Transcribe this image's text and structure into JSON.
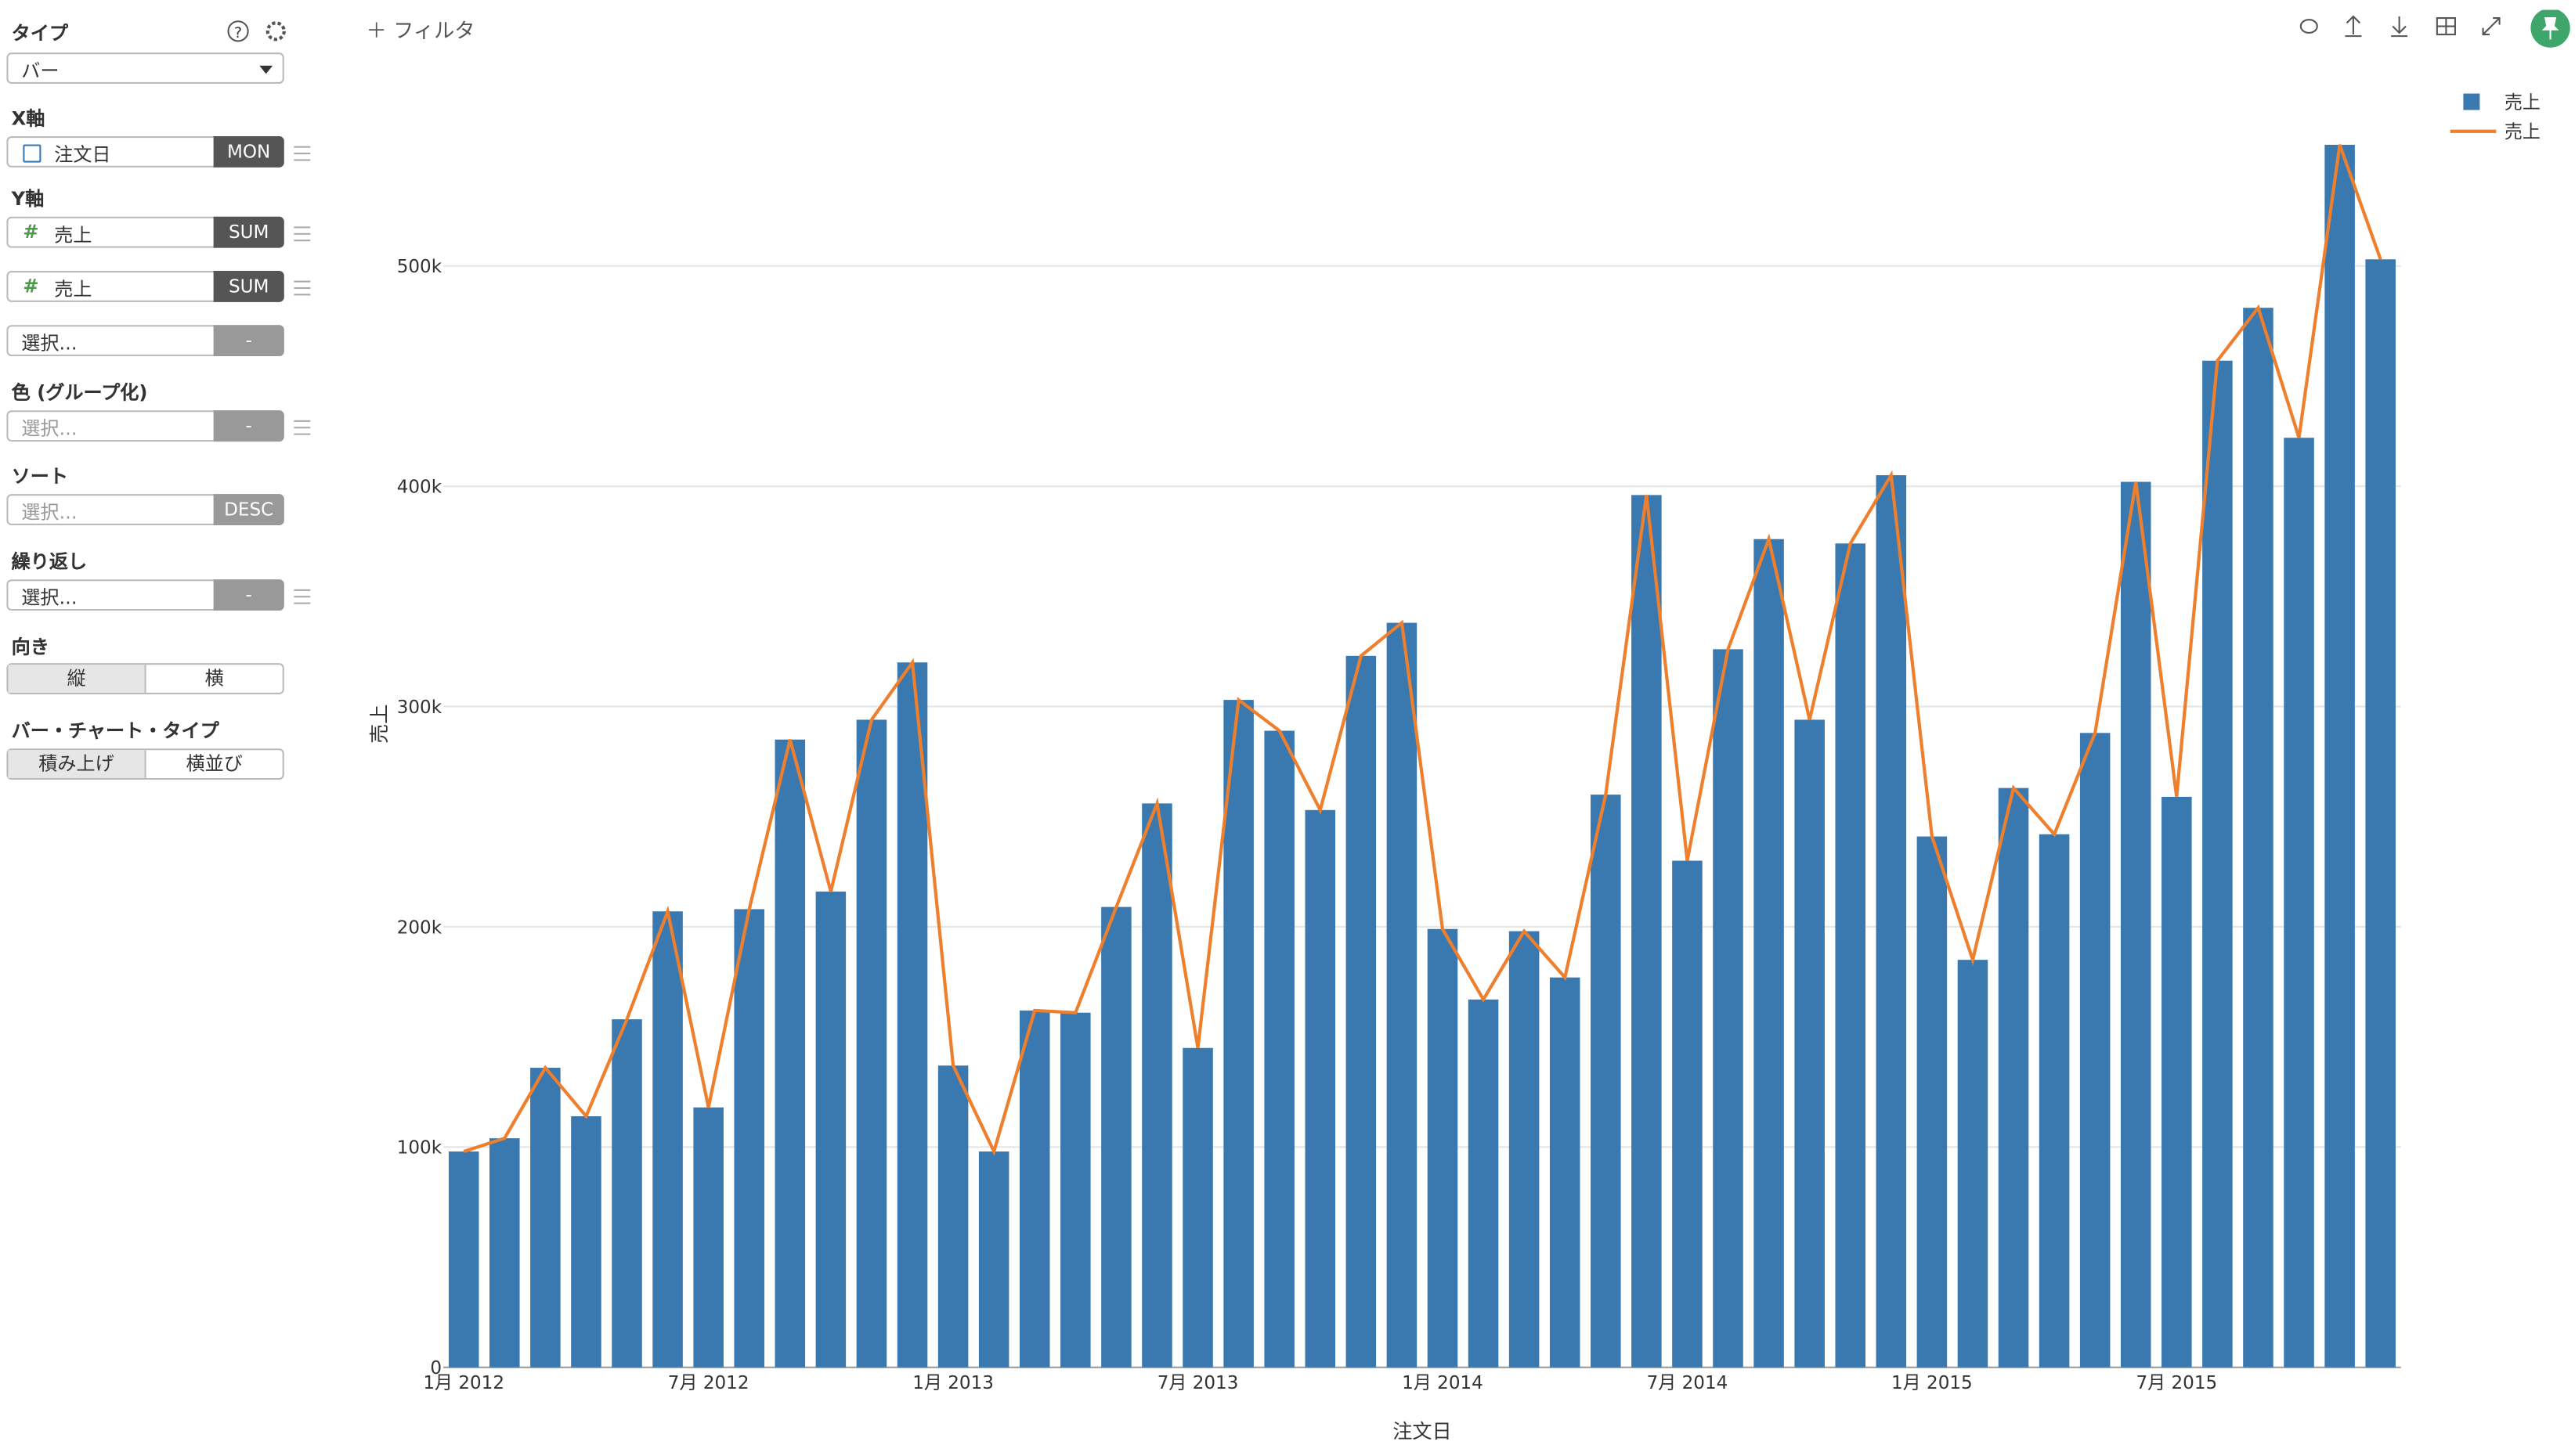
{
  "sidebar": {
    "type_label": "タイプ",
    "type_value": "バー",
    "x_axis": "X軸",
    "x_field": "注文日",
    "x_agg": "MON",
    "y_axis": "Y軸",
    "y_fields": [
      {
        "name": "売上",
        "agg": "SUM"
      },
      {
        "name": "売上",
        "agg": "SUM"
      }
    ],
    "y_empty": "選択...",
    "y_empty_agg": "-",
    "color_label": "色 (グループ化)",
    "color_placeholder": "選択...",
    "color_agg": "-",
    "sort_label": "ソート",
    "sort_placeholder": "選択...",
    "sort_agg": "DESC",
    "wrap_label": "繰り返し",
    "wrap_placeholder": "選択...",
    "wrap_agg": "-",
    "orient_label": "向き",
    "orient_options": [
      "縦",
      "横"
    ],
    "bar_type_label": "バー・チャート・タイプ",
    "bar_type_options": [
      "積み上げ",
      "横並び"
    ]
  },
  "toolbar": {
    "filter": "フィルタ"
  },
  "chart_data": {
    "type": "bar",
    "x_label": "注文日",
    "y_label": "売上",
    "categories": [
      "1月 2012",
      null,
      null,
      null,
      null,
      null,
      "7月 2012",
      null,
      null,
      null,
      null,
      null,
      "1月 2013",
      null,
      null,
      null,
      null,
      null,
      "7月 2013",
      null,
      null,
      null,
      null,
      null,
      "1月 2014",
      null,
      null,
      null,
      null,
      null,
      "7月 2014",
      null,
      null,
      null,
      null,
      null,
      "1月 2015",
      null,
      null,
      null,
      null,
      null,
      "7月 2015",
      null,
      null,
      null,
      null,
      null
    ],
    "series": [
      {
        "name": "売上",
        "type": "bar",
        "color": "#3a78b0",
        "values": [
          98000,
          104000,
          136000,
          114000,
          158000,
          207000,
          118000,
          208000,
          285000,
          216000,
          294000,
          320000,
          137000,
          98000,
          162000,
          161000,
          209000,
          256000,
          145000,
          303000,
          289000,
          253000,
          323000,
          338000,
          199000,
          167000,
          198000,
          177000,
          260000,
          396000,
          230000,
          326000,
          376000,
          294000,
          374000,
          405000,
          241000,
          185000,
          263000,
          242000,
          288000,
          402000,
          259000,
          457000,
          481000,
          422000,
          555000,
          503000
        ]
      },
      {
        "name": "売上",
        "type": "line",
        "color": "#ee7f2d",
        "values": [
          98000,
          104000,
          136000,
          114000,
          158000,
          207000,
          118000,
          208000,
          285000,
          216000,
          294000,
          320000,
          137000,
          98000,
          162000,
          161000,
          209000,
          256000,
          145000,
          303000,
          289000,
          253000,
          323000,
          338000,
          199000,
          167000,
          198000,
          177000,
          260000,
          396000,
          230000,
          326000,
          376000,
          294000,
          374000,
          405000,
          241000,
          185000,
          263000,
          242000,
          288000,
          402000,
          259000,
          457000,
          481000,
          422000,
          555000,
          503000
        ]
      }
    ],
    "ylim": [
      0,
      560000
    ],
    "yticks": [
      0,
      {
        "value": 100000,
        "label": "100k"
      },
      {
        "value": 200000,
        "label": "200k"
      },
      {
        "value": 300000,
        "label": "300k"
      },
      {
        "value": 400000,
        "label": "400k"
      },
      {
        "value": 500000,
        "label": "500k"
      }
    ],
    "grid": true,
    "legend": "top-right"
  }
}
